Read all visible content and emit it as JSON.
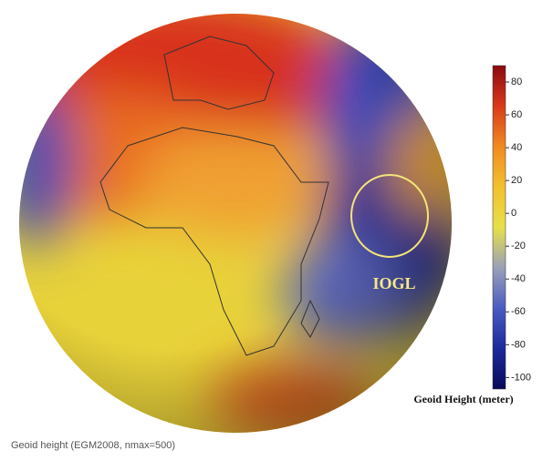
{
  "annotation": "IOGL",
  "caption": "Geoid height (EGM2008, nmax=500)",
  "colorbar": {
    "label": "Geoid Height (meter)",
    "range": [
      -107,
      90
    ],
    "ticks": [
      80,
      60,
      40,
      20,
      0,
      -20,
      -40,
      -60,
      -80,
      -100
    ],
    "colors": [
      "#0a0a5a",
      "#1c2a9a",
      "#4a5cc0",
      "#9aa0b8",
      "#e6e04a",
      "#f2c030",
      "#f08a20",
      "#d83a1a",
      "#8a0a10"
    ]
  }
}
